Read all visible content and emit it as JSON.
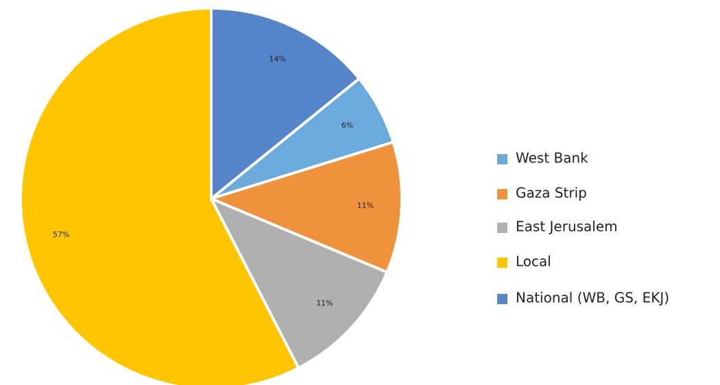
{
  "chart_data": {
    "type": "pie",
    "categories": [
      "West Bank",
      "Gaza Strip",
      "East Jerusalem",
      "Local",
      "National (WB, GS, EKJ)"
    ],
    "values": [
      6,
      11,
      11,
      57,
      14
    ],
    "value_labels": [
      "6%",
      "11%",
      "11%",
      "57%",
      "14%"
    ],
    "colors": [
      "#6aaadd",
      "#f0923c",
      "#b0b0b0",
      "#ffc600",
      "#5585c8"
    ],
    "legend": "right"
  }
}
